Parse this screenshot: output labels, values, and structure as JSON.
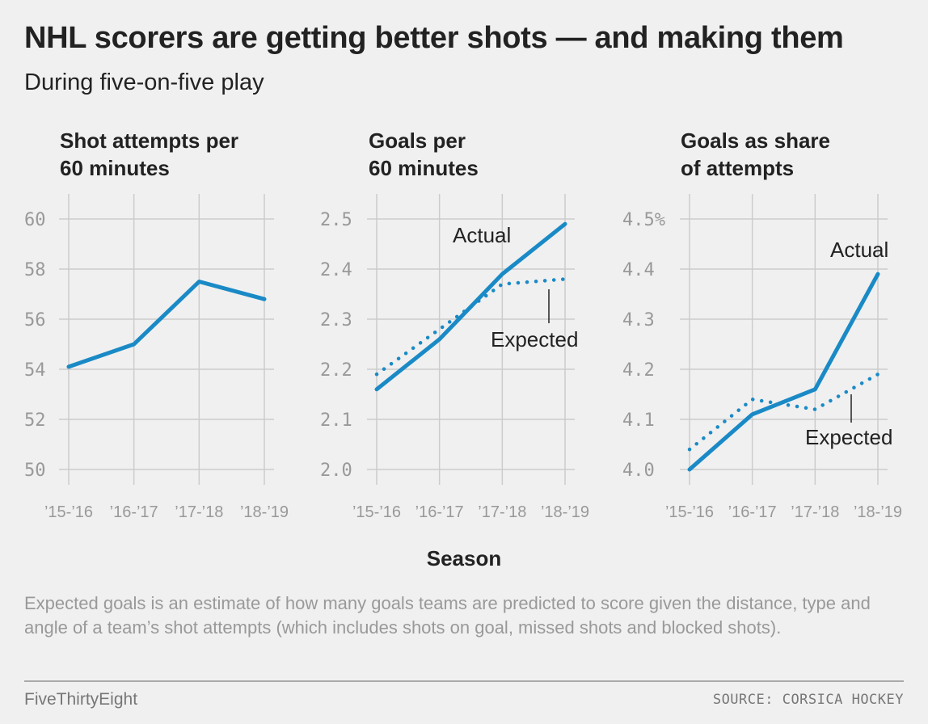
{
  "title": "NHL scorers are getting better shots — and making them",
  "subtitle": "During five-on-five play",
  "xlabel": "Season",
  "note": "Expected goals is an estimate of how many goals teams are predicted to score given the distance, type and angle of a team’s shot attempts (which includes shots on goal, missed shots and blocked shots).",
  "footer": {
    "brand": "FiveThirtyEight",
    "source": "SOURCE: CORSICA HOCKEY"
  },
  "colors": {
    "line": "#1a8ac6",
    "grid": "#cccccc",
    "tick": "#999999",
    "background": "#f0f0f0"
  },
  "chart_data": [
    {
      "type": "line",
      "title_lines": [
        "Shot attempts per",
        "60 minutes"
      ],
      "categories": [
        "’15-’16",
        "’16-’17",
        "’17-’18",
        "’18-’19"
      ],
      "yticks": [
        "60",
        "58",
        "56",
        "54",
        "52",
        "50"
      ],
      "ytick_values": [
        60,
        58,
        56,
        54,
        52,
        50
      ],
      "ylim": [
        50,
        60
      ],
      "series": [
        {
          "values": [
            54.1,
            55.0,
            57.5,
            56.8
          ],
          "style": "solid"
        }
      ],
      "annotations": []
    },
    {
      "type": "line",
      "title_lines": [
        "Goals per",
        "60 minutes"
      ],
      "categories": [
        "’15-’16",
        "’16-’17",
        "’17-’18",
        "’18-’19"
      ],
      "yticks": [
        "2.5",
        "2.4",
        "2.3",
        "2.2",
        "2.1",
        "2.0"
      ],
      "ytick_values": [
        2.5,
        2.4,
        2.3,
        2.2,
        2.1,
        2.0
      ],
      "ylim": [
        2.0,
        2.5
      ],
      "series": [
        {
          "name": "Actual",
          "values": [
            2.16,
            2.26,
            2.39,
            2.49
          ],
          "style": "solid"
        },
        {
          "name": "Expected",
          "values": [
            2.19,
            2.28,
            2.37,
            2.38
          ],
          "style": "dotted"
        }
      ],
      "annotations": [
        "Actual",
        "Expected"
      ]
    },
    {
      "type": "line",
      "title_lines": [
        "Goals as share",
        "of attempts"
      ],
      "categories": [
        "’15-’16",
        "’16-’17",
        "’17-’18",
        "’18-’19"
      ],
      "yticks": [
        "4.5%",
        "4.4",
        "4.3",
        "4.2",
        "4.1",
        "4.0"
      ],
      "ytick_values": [
        4.5,
        4.4,
        4.3,
        4.2,
        4.1,
        4.0
      ],
      "ylim": [
        4.0,
        4.5
      ],
      "series": [
        {
          "name": "Actual",
          "values": [
            4.0,
            4.11,
            4.16,
            4.39
          ],
          "style": "solid"
        },
        {
          "name": "Expected",
          "values": [
            4.04,
            4.14,
            4.12,
            4.19
          ],
          "style": "dotted"
        }
      ],
      "annotations": [
        "Actual",
        "Expected"
      ]
    }
  ]
}
